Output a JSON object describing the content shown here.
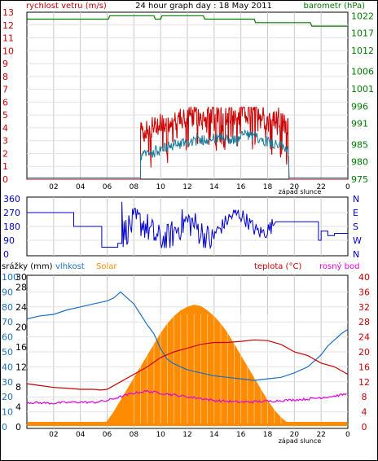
{
  "chart_data": [
    {
      "type": "line",
      "title": "24 hour graph day : 18 May 2011",
      "left_axis_label": "rychlost vetru (m/s)",
      "right_axis_label": "barometr (hPa)",
      "left_ylim": [
        0,
        13
      ],
      "right_ylim": [
        975,
        1023
      ],
      "left_ticks": [
        "0",
        "1",
        "2",
        "3",
        "4",
        "5",
        "6",
        "7",
        "8",
        "9",
        "10",
        "11",
        "12",
        "13"
      ],
      "right_ticks": [
        "975",
        "980",
        "985",
        "991",
        "996",
        "1001",
        "1006",
        "1012",
        "1017",
        "1022"
      ],
      "right_tick_values": [
        975,
        980,
        985,
        991,
        996,
        1001,
        1006,
        1012,
        1017,
        1022
      ],
      "x_ticks": [
        "02",
        "04",
        "06",
        "08",
        "10",
        "12",
        "14",
        "16",
        "18",
        "20",
        "22",
        "0"
      ],
      "sunset_label": "západ slunce",
      "colors": {
        "gust": "#cc0000",
        "wind": "#1a7a9a",
        "pressure": "#007a00"
      },
      "pressure": {
        "x": [
          0,
          6.1,
          6.2,
          9.5,
          9.6,
          10.0,
          10.1,
          13.2,
          13.3,
          17.0,
          17.1,
          21.2,
          21.3,
          24
        ],
        "y": [
          1021,
          1021,
          1022,
          1022,
          1021,
          1021,
          1022,
          1022,
          1021,
          1021,
          1020,
          1020,
          1019,
          1019
        ]
      }
    },
    {
      "type": "line",
      "title": "wind direction",
      "left_ticks": [
        "0",
        "90",
        "180",
        "270",
        "360"
      ],
      "left_tick_values": [
        0,
        90,
        180,
        270,
        360
      ],
      "right_ticks": [
        "N",
        "W",
        "S",
        "E",
        "N"
      ],
      "ylim": [
        0,
        360
      ],
      "colors": {
        "direction": "#0000cc"
      }
    },
    {
      "type": "area",
      "labels": {
        "rain": "srážky (mm)",
        "humidity": "vlhkost",
        "solar": "Solar",
        "temperature": "teplota (°C)",
        "dewpoint": "rosný bod"
      },
      "humidity_ticks": [
        "0",
        "10",
        "20",
        "30",
        "40",
        "50",
        "60",
        "70",
        "80",
        "90",
        "100"
      ],
      "rain_ticks": [
        "0",
        "2",
        "4",
        "6",
        "8",
        "10",
        "12",
        "14",
        "16",
        "18",
        "20",
        "22",
        "24",
        "26",
        "28",
        "30"
      ],
      "temp_ticks": [
        "0",
        "4",
        "8",
        "12",
        "16",
        "20",
        "24",
        "28",
        "32",
        "36",
        "40"
      ],
      "ylim_humidity": [
        0,
        100
      ],
      "ylim_temperature": [
        0,
        40
      ],
      "x_ticks": [
        "02",
        "04",
        "06",
        "08",
        "10",
        "12",
        "14",
        "16",
        "18",
        "20",
        "22",
        "0"
      ],
      "sunset_label": "západ slunce",
      "colors": {
        "humidity": "#1a6fc4",
        "temperature": "#cc0000",
        "dewpoint": "#e000e0",
        "solar": "#ff8c00",
        "rain_label": "#000000"
      },
      "humidity": {
        "x": [
          0,
          1,
          2,
          3,
          4,
          5,
          6,
          6.5,
          7,
          7.5,
          8,
          8.5,
          9,
          9.5,
          10,
          10.5,
          11,
          12,
          13,
          14,
          15,
          16,
          17,
          18,
          19,
          20,
          21,
          22,
          22.5,
          23,
          23.5,
          24
        ],
        "y": [
          72,
          74,
          75,
          78,
          80,
          82,
          84,
          86,
          90,
          86,
          82,
          75,
          68,
          62,
          52,
          45,
          42,
          38,
          36,
          34,
          33,
          32,
          31,
          32,
          33,
          36,
          40,
          48,
          54,
          58,
          62,
          65
        ]
      },
      "temperature": {
        "x": [
          0,
          1,
          2,
          3,
          4,
          5,
          5.5,
          6,
          7,
          8,
          9,
          10,
          11,
          12,
          13,
          14,
          15,
          16,
          17,
          18,
          19,
          20,
          21,
          22,
          23,
          24
        ],
        "y": [
          11.5,
          11,
          10.5,
          10.3,
          10,
          10,
          9.8,
          10,
          12,
          14,
          16,
          18.5,
          20,
          21,
          22,
          22.5,
          22.5,
          22.8,
          23.2,
          23,
          22,
          20,
          19,
          17,
          16,
          14
        ]
      },
      "dewpoint": {
        "x": [
          0,
          1,
          2,
          3,
          4,
          5,
          6,
          7,
          8,
          9,
          10,
          11,
          12,
          13,
          14,
          15,
          16,
          17,
          18,
          19,
          20,
          21,
          22,
          23,
          24
        ],
        "y": [
          6.5,
          6.4,
          6.3,
          6.5,
          6.6,
          6.5,
          7,
          8,
          9,
          9.5,
          9,
          8.5,
          8,
          7.6,
          7,
          6.8,
          6.6,
          6.7,
          6.8,
          7,
          7.2,
          7.4,
          7.8,
          8.2,
          8.8
        ]
      },
      "solar_temp_scale": {
        "x": [
          0,
          5.6,
          5.8,
          6.0,
          6.5,
          7,
          7.5,
          8,
          8.5,
          9,
          9.5,
          10,
          10.5,
          11,
          11.5,
          12,
          12.5,
          13,
          13.5,
          14,
          14.5,
          15,
          15.5,
          16,
          16.5,
          17,
          17.5,
          18,
          18.5,
          19,
          19.5,
          20,
          24
        ],
        "y": [
          0,
          0,
          0.4,
          1.5,
          4,
          7,
          10,
          13,
          16,
          19,
          22,
          25,
          27.5,
          29.5,
          31,
          32,
          32.5,
          32.2,
          31,
          29.5,
          27.5,
          25,
          22,
          19,
          16,
          13,
          10,
          7,
          4.5,
          2.5,
          1,
          0,
          0
        ]
      }
    }
  ]
}
